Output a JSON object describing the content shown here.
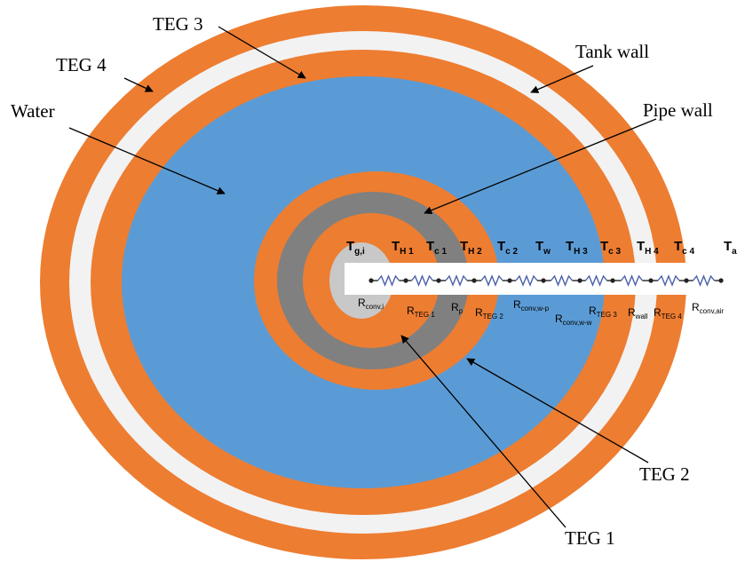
{
  "colors": {
    "teg": "#ed7d31",
    "tank_wall": "#f2f2f2",
    "water": "#5b9bd5",
    "pipe_wall": "#808080",
    "core": "#c8c8c8",
    "resistor": "#4a5fa8",
    "strip": "#ffffff"
  },
  "callouts": {
    "teg3": "TEG 3",
    "teg4": "TEG 4",
    "tank_wall": "Tank wall",
    "water": "Water",
    "pipe_wall": "Pipe wall",
    "teg2": "TEG 2",
    "teg1": "TEG 1"
  },
  "nodes": [
    {
      "main": "T",
      "sub": "g,i"
    },
    {
      "main": "T",
      "sub": "H 1"
    },
    {
      "main": "T",
      "sub": "c 1"
    },
    {
      "main": "T",
      "sub": "H 2"
    },
    {
      "main": "T",
      "sub": "c 2"
    },
    {
      "main": "T",
      "sub": "w"
    },
    {
      "main": "T",
      "sub": "H 3"
    },
    {
      "main": "T",
      "sub": "c 3"
    },
    {
      "main": "T",
      "sub": "H 4"
    },
    {
      "main": "T",
      "sub": "c 4"
    },
    {
      "main": "T",
      "sub": "a"
    }
  ],
  "resistances": [
    {
      "main": "R",
      "sub": "conv,i"
    },
    {
      "main": "R",
      "sub": "TEG 1"
    },
    {
      "main": "R",
      "sub": "p"
    },
    {
      "main": "R",
      "sub": "TEG 2"
    },
    {
      "main": "R",
      "sub": "conv,w-p"
    },
    {
      "main": "R",
      "sub": "conv,w-w"
    },
    {
      "main": "R",
      "sub": "TEG 3"
    },
    {
      "main": "R",
      "sub": "wall"
    },
    {
      "main": "R",
      "sub": "TEG 4"
    },
    {
      "main": "R",
      "sub": "conv,air"
    }
  ]
}
